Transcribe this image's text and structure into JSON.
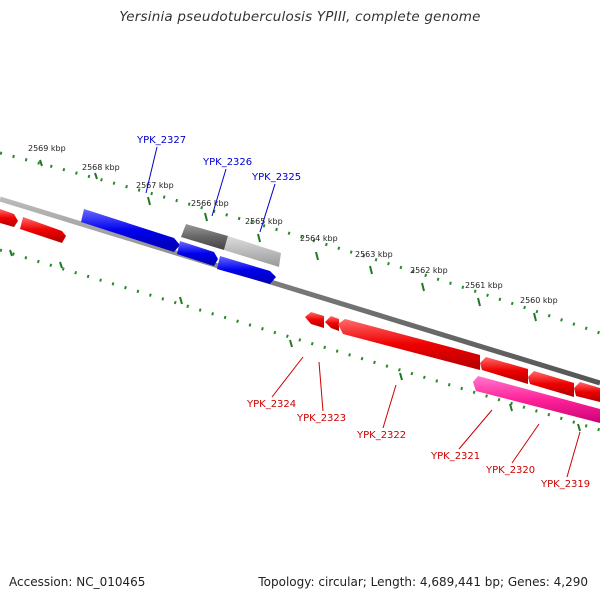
{
  "title": "Yersinia pseudotuberculosis YPIII, complete genome",
  "footer": {
    "accession": "Accession: NC_010465",
    "summary": "Topology: circular; Length: 4,689,441 bp; Genes: 4,290"
  },
  "ticks": [
    "2569 kbp",
    "2568 kbp",
    "2567 kbp",
    "2566 kbp",
    "2565 kbp",
    "2564 kbp",
    "2563 kbp",
    "2562 kbp",
    "2561 kbp",
    "2560 kbp"
  ],
  "genes_top": [
    "YPK_2327",
    "YPK_2326",
    "YPK_2325"
  ],
  "genes_bottom": [
    "YPK_2324",
    "YPK_2323",
    "YPK_2322",
    "YPK_2321",
    "YPK_2320",
    "YPK_2319"
  ],
  "colors": {
    "forward_gene": "#0000ff",
    "reverse_gene": "#ff0000",
    "selected_gene": "#ff3399",
    "pseudo_gene": "#777777",
    "backbone": "#888888",
    "tick": "#227722"
  }
}
